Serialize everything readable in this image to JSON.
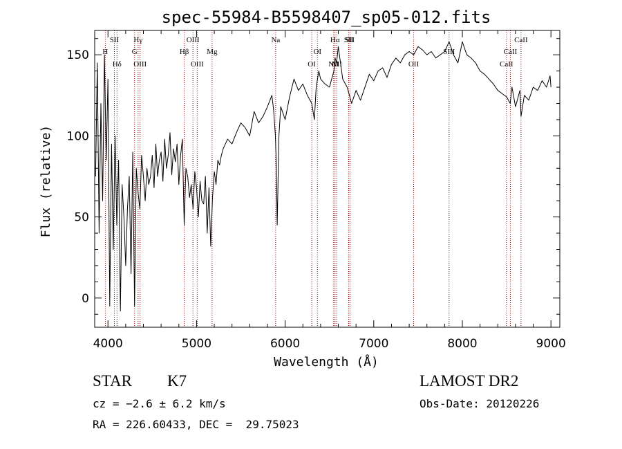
{
  "chart_data": {
    "type": "line",
    "title": "spec-55984-B5598407_sp05-012.fits",
    "xlabel": "Wavelength (Å)",
    "ylabel": "Flux (relative)",
    "xlim": [
      3850,
      9100
    ],
    "ylim": [
      -18,
      165
    ],
    "xticks": [
      4000,
      5000,
      6000,
      7000,
      8000,
      9000
    ],
    "yticks": [
      0,
      50,
      100,
      150
    ],
    "grid": false,
    "line_color": "#000000",
    "marker_color": "#8b0000",
    "series": [
      {
        "x": [
          3860,
          3880,
          3900,
          3920,
          3940,
          3960,
          3980,
          4000,
          4020,
          4040,
          4060,
          4080,
          4100,
          4120,
          4140,
          4160,
          4180,
          4200,
          4220,
          4240,
          4260,
          4280,
          4300,
          4320,
          4340,
          4360,
          4380,
          4400,
          4420,
          4440,
          4460,
          4480,
          4500,
          4520,
          4540,
          4560,
          4580,
          4600,
          4620,
          4640,
          4660,
          4680,
          4700,
          4720,
          4740,
          4760,
          4780,
          4800,
          4820,
          4840,
          4860,
          4880,
          4900,
          4920,
          4940,
          4960,
          4980,
          5000,
          5020,
          5040,
          5060,
          5080,
          5100,
          5120,
          5140,
          5160,
          5180,
          5200,
          5220,
          5240,
          5260,
          5280,
          5300,
          5350,
          5400,
          5450,
          5500,
          5550,
          5600,
          5650,
          5700,
          5750,
          5800,
          5850,
          5870,
          5890,
          5900,
          5910,
          5930,
          5950,
          6000,
          6050,
          6100,
          6150,
          6200,
          6250,
          6300,
          6330,
          6350,
          6380,
          6400,
          6450,
          6500,
          6550,
          6563,
          6580,
          6600,
          6650,
          6700,
          6750,
          6800,
          6850,
          6900,
          6950,
          7000,
          7050,
          7100,
          7150,
          7200,
          7250,
          7300,
          7350,
          7400,
          7450,
          7500,
          7550,
          7600,
          7650,
          7700,
          7750,
          7800,
          7850,
          7900,
          7950,
          8000,
          8050,
          8100,
          8150,
          8200,
          8250,
          8300,
          8350,
          8400,
          8450,
          8500,
          8540,
          8560,
          8600,
          8650,
          8662,
          8700,
          8750,
          8800,
          8850,
          8900,
          8950,
          8990,
          9000
        ],
        "y": [
          75,
          145,
          40,
          120,
          60,
          150,
          85,
          135,
          -5,
          95,
          30,
          100,
          45,
          85,
          -8,
          70,
          50,
          20,
          55,
          75,
          15,
          90,
          -5,
          80,
          65,
          55,
          88,
          75,
          60,
          80,
          70,
          75,
          88,
          68,
          95,
          75,
          85,
          90,
          72,
          98,
          80,
          88,
          102,
          76,
          92,
          84,
          95,
          70,
          88,
          98,
          45,
          80,
          75,
          62,
          70,
          55,
          78,
          68,
          50,
          72,
          60,
          58,
          75,
          40,
          68,
          32,
          62,
          78,
          70,
          85,
          82,
          88,
          92,
          98,
          95,
          102,
          108,
          105,
          100,
          115,
          108,
          112,
          118,
          125,
          116,
          100,
          82,
          45,
          100,
          118,
          110,
          124,
          135,
          128,
          132,
          125,
          120,
          110,
          130,
          140,
          135,
          132,
          130,
          140,
          148,
          145,
          155,
          135,
          130,
          120,
          128,
          122,
          130,
          138,
          134,
          140,
          142,
          136,
          144,
          148,
          145,
          150,
          152,
          150,
          155,
          153,
          150,
          152,
          148,
          150,
          152,
          158,
          150,
          145,
          158,
          150,
          148,
          145,
          140,
          138,
          135,
          132,
          128,
          126,
          124,
          120,
          130,
          118,
          128,
          112,
          125,
          122,
          130,
          128,
          134,
          130,
          137,
          130
        ]
      }
    ],
    "markers": [
      {
        "wl": 3970,
        "label": "H",
        "row": 2
      },
      {
        "wl": 4072,
        "label": "SII",
        "row": 1
      },
      {
        "wl": 4102,
        "label": "Hδ",
        "row": 3
      },
      {
        "wl": 4300,
        "label": "G",
        "row": 2
      },
      {
        "wl": 4340,
        "label": "Hγ",
        "row": 1
      },
      {
        "wl": 4363,
        "label": "OIII",
        "row": 3
      },
      {
        "wl": 4861,
        "label": "Hβ",
        "row": 2
      },
      {
        "wl": 4959,
        "label": "OIII",
        "row": 1
      },
      {
        "wl": 5007,
        "label": "OIII",
        "row": 3
      },
      {
        "wl": 5175,
        "label": "Mg",
        "row": 2
      },
      {
        "wl": 5893,
        "label": "Na",
        "row": 1
      },
      {
        "wl": 6300,
        "label": "OI",
        "row": 3
      },
      {
        "wl": 6364,
        "label": "OI",
        "row": 2
      },
      {
        "wl": 6548,
        "label": "NII",
        "row": 3
      },
      {
        "wl": 6563,
        "label": "Hα",
        "row": 1
      },
      {
        "wl": 6583,
        "label": "NII",
        "row": 3
      },
      {
        "wl": 6717,
        "label": "SII",
        "row": 1
      },
      {
        "wl": 6731,
        "label": "SII",
        "row": 1
      },
      {
        "wl": 7450,
        "label": "OII",
        "row": 3
      },
      {
        "wl": 7850,
        "label": "SIII",
        "row": 2
      },
      {
        "wl": 8498,
        "label": "CaII",
        "row": 3
      },
      {
        "wl": 8542,
        "label": "CaII",
        "row": 2
      },
      {
        "wl": 8662,
        "label": "CaII",
        "row": 1
      }
    ]
  },
  "info": {
    "object_class": "STAR",
    "subclass": "K7",
    "cz": "cz = −2.6 ± 6.2 km/s",
    "coords": "RA = 226.60433, DEC =  29.75023",
    "survey": "LAMOST DR2",
    "obs_date": "Obs-Date: 20120226"
  }
}
